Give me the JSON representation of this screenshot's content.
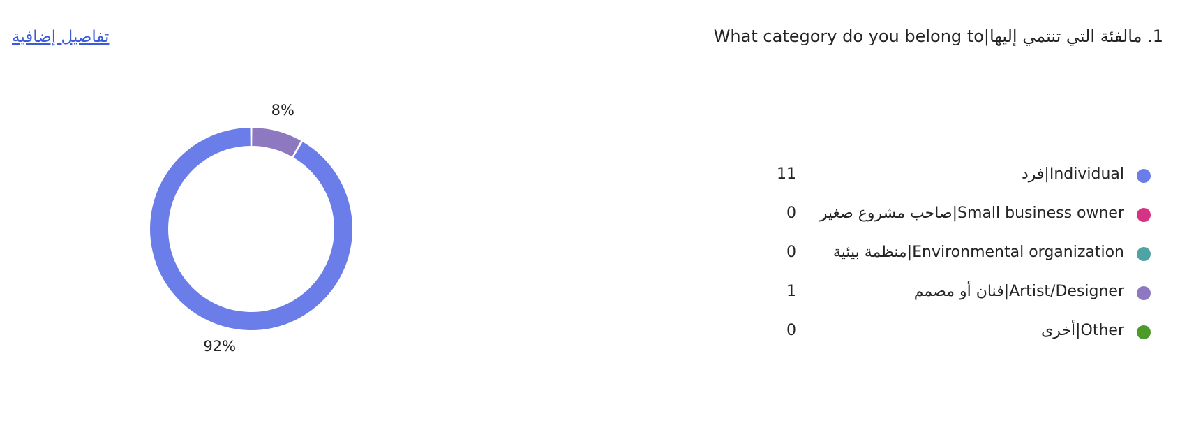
{
  "question": {
    "number_label": "1.",
    "text": "مالفئة التي تنتمي إليها|What category do you belong to",
    "display": "1. مالفئة التي تنتمي إليها|What category do you belong to"
  },
  "details_link": "تفاصيل إضافية",
  "chart_data": {
    "type": "pie",
    "categories": [
      "Individual|فرد",
      "Small business owner|صاحب مشروع صغير",
      "Environmental organization|منظمة بيئية",
      "Artist/Designer|فنان أو مصمم",
      "Other|أخرى"
    ],
    "values": [
      11,
      0,
      0,
      1,
      0
    ],
    "colors": [
      "#6b7de8",
      "#d63384",
      "#4fa3a5",
      "#8e79c0",
      "#4c9a2a"
    ],
    "percent_labels": [
      "92%",
      "",
      "",
      "8%",
      ""
    ],
    "donut": true
  },
  "legend": [
    {
      "label": "Individual|فرد",
      "count": "11",
      "color": "#6b7de8"
    },
    {
      "label": "Small business owner|صاحب مشروع صغير",
      "count": "0",
      "color": "#d63384"
    },
    {
      "label": "Environmental organization|منظمة بيئية",
      "count": "0",
      "color": "#4fa3a5"
    },
    {
      "label": "Artist/Designer|فنان أو مصمم",
      "count": "1",
      "color": "#8e79c0"
    },
    {
      "label": "Other|أخرى",
      "count": "0",
      "color": "#4c9a2a"
    }
  ]
}
